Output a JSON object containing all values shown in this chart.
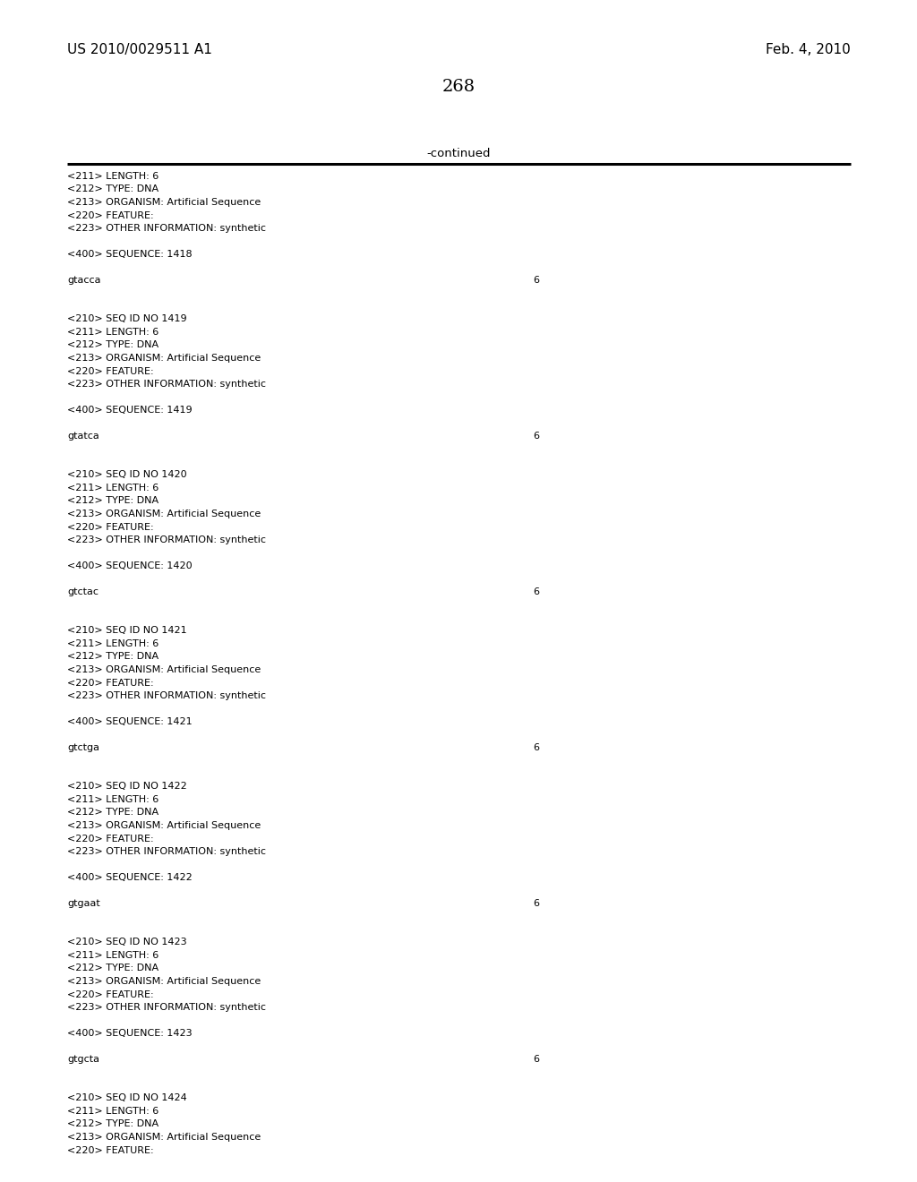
{
  "page_number": "268",
  "header_left": "US 2010/0029511 A1",
  "header_right": "Feb. 4, 2010",
  "continued_label": "-continued",
  "background_color": "#ffffff",
  "text_color": "#000000",
  "blocks": [
    {
      "meta_lines": [
        "<211> LENGTH: 6",
        "<212> TYPE: DNA",
        "<213> ORGANISM: Artificial Sequence",
        "<220> FEATURE:",
        "<223> OTHER INFORMATION: synthetic"
      ],
      "seq_label": "<400> SEQUENCE: 1418",
      "sequence": "gtacca",
      "length_val": "6"
    },
    {
      "meta_lines": [
        "<210> SEQ ID NO 1419",
        "<211> LENGTH: 6",
        "<212> TYPE: DNA",
        "<213> ORGANISM: Artificial Sequence",
        "<220> FEATURE:",
        "<223> OTHER INFORMATION: synthetic"
      ],
      "seq_label": "<400> SEQUENCE: 1419",
      "sequence": "gtatca",
      "length_val": "6"
    },
    {
      "meta_lines": [
        "<210> SEQ ID NO 1420",
        "<211> LENGTH: 6",
        "<212> TYPE: DNA",
        "<213> ORGANISM: Artificial Sequence",
        "<220> FEATURE:",
        "<223> OTHER INFORMATION: synthetic"
      ],
      "seq_label": "<400> SEQUENCE: 1420",
      "sequence": "gtctac",
      "length_val": "6"
    },
    {
      "meta_lines": [
        "<210> SEQ ID NO 1421",
        "<211> LENGTH: 6",
        "<212> TYPE: DNA",
        "<213> ORGANISM: Artificial Sequence",
        "<220> FEATURE:",
        "<223> OTHER INFORMATION: synthetic"
      ],
      "seq_label": "<400> SEQUENCE: 1421",
      "sequence": "gtctga",
      "length_val": "6"
    },
    {
      "meta_lines": [
        "<210> SEQ ID NO 1422",
        "<211> LENGTH: 6",
        "<212> TYPE: DNA",
        "<213> ORGANISM: Artificial Sequence",
        "<220> FEATURE:",
        "<223> OTHER INFORMATION: synthetic"
      ],
      "seq_label": "<400> SEQUENCE: 1422",
      "sequence": "gtgaat",
      "length_val": "6"
    },
    {
      "meta_lines": [
        "<210> SEQ ID NO 1423",
        "<211> LENGTH: 6",
        "<212> TYPE: DNA",
        "<213> ORGANISM: Artificial Sequence",
        "<220> FEATURE:",
        "<223> OTHER INFORMATION: synthetic"
      ],
      "seq_label": "<400> SEQUENCE: 1423",
      "sequence": "gtgcta",
      "length_val": "6"
    },
    {
      "meta_lines": [
        "<210> SEQ ID NO 1424",
        "<211> LENGTH: 6",
        "<212> TYPE: DNA",
        "<213> ORGANISM: Artificial Sequence",
        "<220> FEATURE:"
      ],
      "seq_label": null,
      "sequence": null,
      "length_val": null
    }
  ]
}
